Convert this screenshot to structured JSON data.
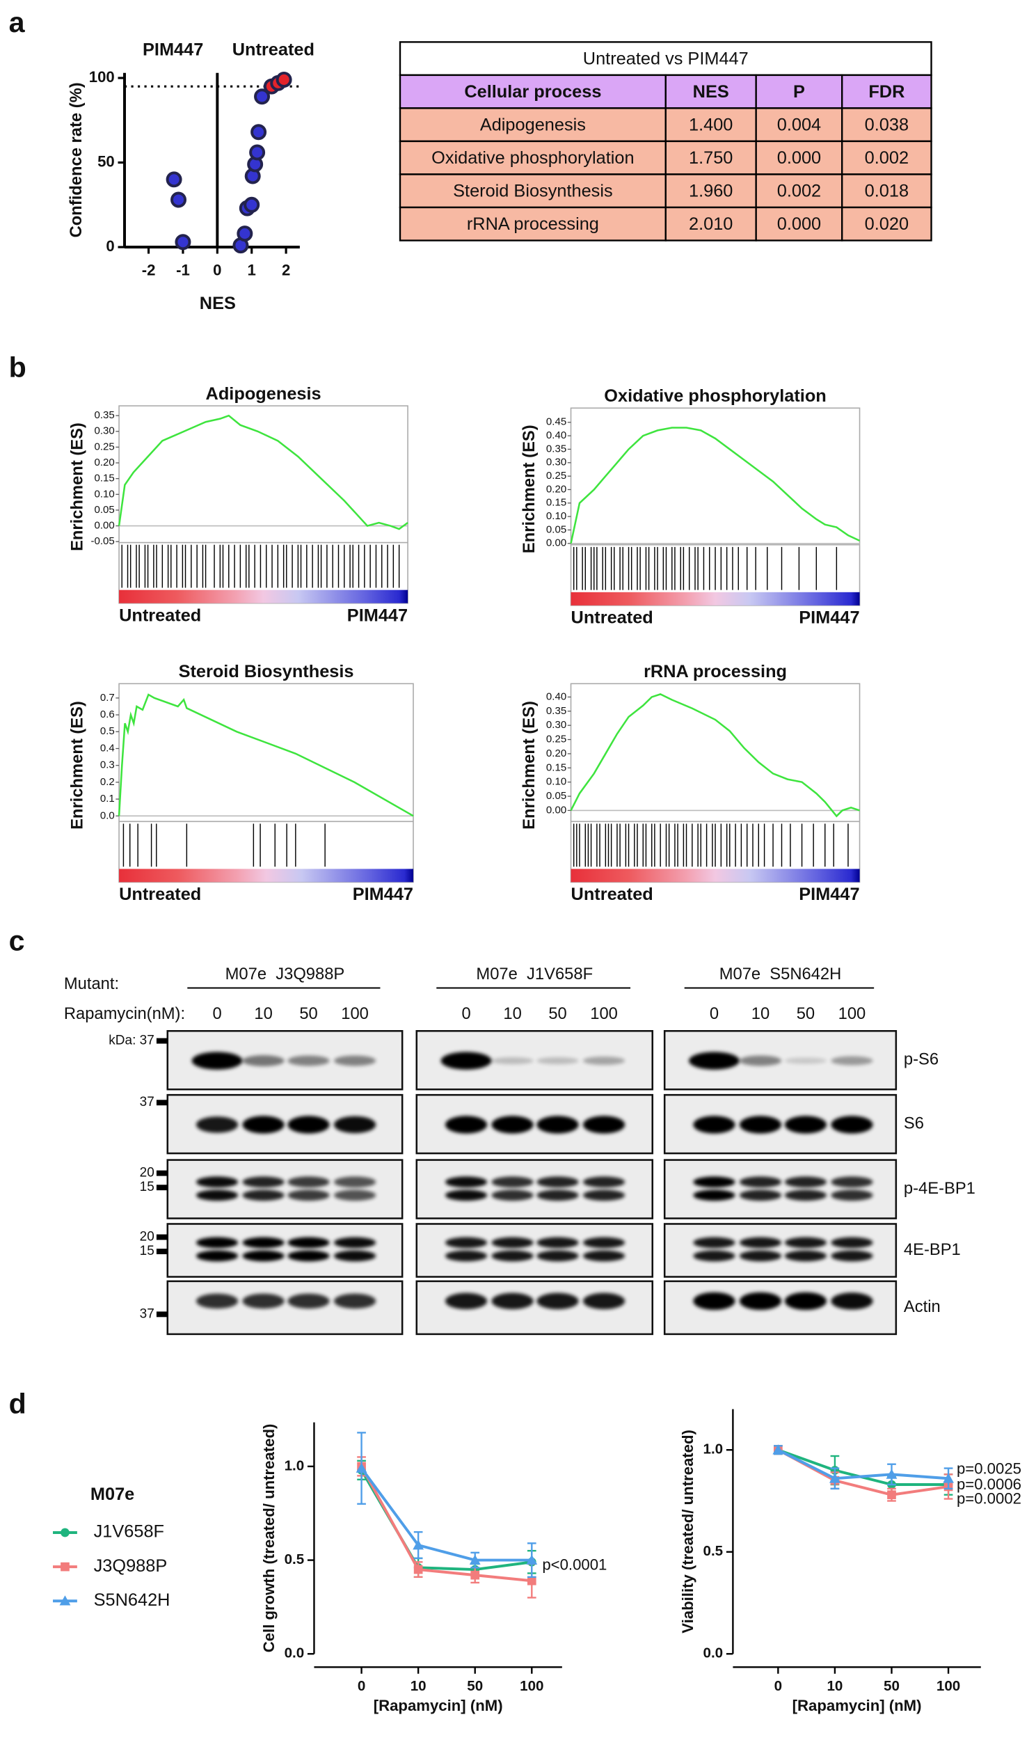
{
  "panels": [
    "a",
    "b",
    "c",
    "d"
  ],
  "chart_data": [
    {
      "type": "scatter",
      "xlabel": "NES",
      "ylabel": "Confidence rate (%)",
      "annotations": [
        "PIM447",
        "Untreated"
      ],
      "xlim": [
        -2.7,
        2.4
      ],
      "xticks": [
        -2,
        -1,
        0,
        1,
        2
      ],
      "ylim": [
        0,
        103
      ],
      "yticks": [
        0,
        50,
        100
      ],
      "threshold": 95,
      "series": [
        {
          "color": "#3434d0",
          "x": [
            -1.26,
            -1.13,
            -1.0,
            0.68,
            0.8,
            0.87,
            1.0,
            1.03,
            1.1,
            1.16,
            1.2,
            1.3
          ],
          "values": [
            40,
            28,
            3,
            1,
            8,
            23,
            25,
            42,
            49,
            56,
            68,
            89
          ]
        },
        {
          "color": "#e3232b",
          "x": [
            1.58,
            1.77,
            1.94
          ],
          "values": [
            95,
            97,
            99
          ]
        }
      ]
    },
    {
      "type": "line",
      "title": "Adipogenesis",
      "ylabel": "Enrichment (ES)",
      "color": "#3ee43e",
      "left_label": "Untreated",
      "right_label": "PIM447",
      "xlim": [
        0,
        100
      ],
      "ylim": [
        -0.053,
        0.381
      ],
      "yticks": [
        -0.05,
        {
          "value": 0,
          "label": "0.00"
        },
        0.05,
        {
          "value": 0.1,
          "label": "0.10"
        },
        0.15,
        {
          "value": 0.2,
          "label": "0.20"
        },
        0.25,
        {
          "value": 0.3,
          "label": "0.30"
        },
        0.35
      ],
      "x": [
        0,
        2,
        5,
        10,
        15,
        20,
        25,
        30,
        35,
        38,
        42,
        48,
        55,
        62,
        70,
        78,
        82,
        86,
        90,
        94,
        97,
        100
      ],
      "values": [
        0,
        0.13,
        0.17,
        0.22,
        0.27,
        0.29,
        0.31,
        0.33,
        0.34,
        0.35,
        0.32,
        0.3,
        0.27,
        0.22,
        0.15,
        0.08,
        0.04,
        0,
        0.01,
        0,
        -0.01,
        0.01
      ],
      "hits": [
        1,
        3,
        4,
        6,
        7,
        9,
        10,
        12,
        13,
        15,
        17,
        18,
        20,
        22,
        23,
        25,
        27,
        29,
        30,
        33,
        35,
        36,
        38,
        40,
        42,
        44,
        45,
        47,
        49,
        51,
        53,
        55,
        57,
        58,
        60,
        62,
        63,
        65,
        67,
        69,
        70,
        72,
        74,
        76,
        78,
        80,
        81,
        83,
        85,
        87,
        89,
        91,
        93,
        95,
        97
      ]
    },
    {
      "type": "line",
      "title": "Oxidative phosphorylation",
      "ylabel": "Enrichment (ES)",
      "color": "#3ee43e",
      "left_label": "Untreated",
      "right_label": "PIM447",
      "xlim": [
        0,
        100
      ],
      "ylim": [
        -0.005,
        0.503
      ],
      "yticks": [
        {
          "value": 0,
          "label": "0.00"
        },
        0.05,
        {
          "value": 0.1,
          "label": "0.10"
        },
        0.15,
        {
          "value": 0.2,
          "label": "0.20"
        },
        0.25,
        {
          "value": 0.3,
          "label": "0.30"
        },
        0.35,
        {
          "value": 0.4,
          "label": "0.40"
        },
        0.45
      ],
      "x": [
        0,
        3,
        8,
        12,
        16,
        20,
        25,
        30,
        35,
        40,
        45,
        50,
        55,
        60,
        65,
        70,
        75,
        80,
        85,
        88,
        92,
        96,
        100
      ],
      "values": [
        0,
        0.15,
        0.2,
        0.25,
        0.3,
        0.35,
        0.4,
        0.42,
        0.43,
        0.43,
        0.42,
        0.39,
        0.35,
        0.31,
        0.27,
        0.23,
        0.18,
        0.13,
        0.09,
        0.07,
        0.06,
        0.03,
        0.01
      ],
      "hits": [
        1,
        2,
        4,
        5,
        7,
        8,
        9,
        11,
        12,
        14,
        15,
        17,
        18,
        20,
        21,
        23,
        24,
        26,
        27,
        29,
        30,
        32,
        33,
        35,
        36,
        38,
        39,
        41,
        43,
        44,
        46,
        48,
        50,
        52,
        54,
        56,
        58,
        61,
        64,
        68,
        73,
        79,
        85,
        92
      ]
    },
    {
      "type": "line",
      "title": "Steroid Biosynthesis",
      "ylabel": "Enrichment (ES)",
      "color": "#3ee43e",
      "left_label": "Untreated",
      "right_label": "PIM447",
      "xlim": [
        0,
        100
      ],
      "ylim": [
        -0.033,
        0.785
      ],
      "yticks": [
        {
          "value": 0,
          "label": "0.0"
        },
        0.1,
        0.2,
        0.3,
        0.4,
        0.5,
        0.6,
        0.7
      ],
      "x": [
        0,
        1,
        2,
        3,
        4,
        5,
        6,
        8,
        10,
        12,
        20,
        22,
        23,
        40,
        60,
        80,
        100
      ],
      "values": [
        0,
        0.3,
        0.55,
        0.5,
        0.6,
        0.55,
        0.65,
        0.63,
        0.72,
        0.7,
        0.65,
        0.69,
        0.64,
        0.5,
        0.37,
        0.2,
        0
      ],
      "hits": [
        1.5,
        3.7,
        6.4,
        11,
        12.7,
        23,
        45.7,
        48,
        53,
        57,
        60,
        70
      ]
    },
    {
      "type": "line",
      "title": "rRNA processing",
      "ylabel": "Enrichment (ES)",
      "color": "#3ee43e",
      "left_label": "Untreated",
      "right_label": "PIM447",
      "xlim": [
        0,
        100
      ],
      "ylim": [
        -0.039,
        0.447
      ],
      "yticks": [
        {
          "value": 0,
          "label": "0.00"
        },
        0.05,
        {
          "value": 0.1,
          "label": "0.10"
        },
        0.15,
        {
          "value": 0.2,
          "label": "0.20"
        },
        0.25,
        {
          "value": 0.3,
          "label": "0.30"
        },
        0.35,
        {
          "value": 0.4,
          "label": "0.40"
        }
      ],
      "x": [
        0,
        3,
        8,
        12,
        16,
        20,
        25,
        28,
        31,
        35,
        42,
        50,
        55,
        60,
        65,
        70,
        75,
        80,
        85,
        88,
        92,
        94,
        97,
        100
      ],
      "values": [
        0,
        0.06,
        0.13,
        0.2,
        0.27,
        0.33,
        0.37,
        0.4,
        0.41,
        0.39,
        0.36,
        0.32,
        0.28,
        0.22,
        0.17,
        0.13,
        0.11,
        0.1,
        0.06,
        0.03,
        -0.02,
        0,
        0.01,
        0
      ],
      "hits": [
        1,
        2,
        3,
        5,
        6,
        7,
        9,
        10,
        12,
        13,
        14,
        16,
        17,
        19,
        20,
        22,
        23,
        25,
        26,
        28,
        29,
        31,
        33,
        34,
        36,
        37,
        39,
        40,
        42,
        44,
        45,
        47,
        49,
        50,
        52,
        54,
        55,
        57,
        59,
        61,
        63,
        65,
        67,
        70,
        73,
        76,
        80,
        84,
        88,
        91,
        96
      ]
    },
    {
      "type": "errorline",
      "ylabel": "Cell growth (treated/ untreated)",
      "xlabel": "[Rapamycin] (nM)",
      "legend_title": "M07e",
      "annotation": "p<0.0001",
      "categories": [
        "0",
        "10",
        "50",
        "100"
      ],
      "ylim": [
        0,
        1.235
      ],
      "yticks": [
        {
          "value": 0,
          "label": "0.0"
        },
        0.5,
        {
          "value": 1,
          "label": "1.0"
        }
      ],
      "series": [
        {
          "name": "J1V658F",
          "color": "#1fb47e",
          "values": [
            0.98,
            0.46,
            0.45,
            0.49
          ],
          "errors": [
            0.05,
            0.05,
            0.03,
            0.06
          ]
        },
        {
          "name": "J3Q988P",
          "color": "#f27c7c",
          "values": [
            1.0,
            0.45,
            0.42,
            0.39
          ],
          "errors": [
            0.05,
            0.04,
            0.04,
            0.09
          ]
        },
        {
          "name": "S5N642H",
          "color": "#4f9ee8",
          "values": [
            0.99,
            0.58,
            0.5,
            0.5
          ],
          "errors": [
            0.19,
            0.07,
            0.04,
            0.09
          ]
        }
      ]
    },
    {
      "type": "errorline",
      "ylabel": "Viability (treated/ untreated)",
      "xlabel": "[Rapamycin] (nM)",
      "categories": [
        "0",
        "10",
        "50",
        "100"
      ],
      "ylim": [
        0,
        1.2
      ],
      "yticks": [
        {
          "value": 0,
          "label": "0.0"
        },
        0.5,
        {
          "value": 1,
          "label": "1.0"
        }
      ],
      "series": [
        {
          "color": "#1fb47e",
          "values": [
            1.0,
            0.9,
            0.83,
            0.83
          ],
          "errors": [
            0.02,
            0.07,
            0.04,
            0.05
          ],
          "annotation": "p=0.0006"
        },
        {
          "color": "#f27c7c",
          "values": [
            1.0,
            0.85,
            0.78,
            0.82
          ],
          "errors": [
            0.02,
            0.04,
            0.03,
            0.06
          ],
          "annotation": "p=0.0002"
        },
        {
          "color": "#4f9ee8",
          "values": [
            1.0,
            0.86,
            0.88,
            0.86
          ],
          "errors": [
            0.02,
            0.05,
            0.05,
            0.05
          ],
          "annotation": "p=0.0025"
        }
      ]
    }
  ],
  "table": {
    "title": "Untreated vs PIM447",
    "header": [
      "Cellular process",
      "NES",
      "P",
      "FDR"
    ],
    "rows": [
      [
        "Adipogenesis",
        "1.400",
        "0.004",
        "0.038"
      ],
      [
        "Oxidative phosphorylation",
        "1.750",
        "0.000",
        "0.002"
      ],
      [
        "Steroid Biosynthesis",
        "1.960",
        "0.002",
        "0.018"
      ],
      [
        "rRNA processing",
        "2.010",
        "0.000",
        "0.020"
      ]
    ]
  },
  "blot": {
    "mutant_label": "Mutant:",
    "dose_label": "Rapamycin(nM):",
    "groups": [
      "M07e  J3Q988P",
      "M07e  J1V658F",
      "M07e  S5N642H"
    ],
    "doses": [
      "0",
      "10",
      "50",
      "100"
    ],
    "proteins": [
      "p-S6",
      "S6",
      "p-4E-BP1",
      "4E-BP1",
      "Actin"
    ],
    "markers": [
      [
        "kDa: 37"
      ],
      [
        "37"
      ],
      [
        "20",
        "15"
      ],
      [
        "20",
        "15"
      ],
      [
        "37"
      ]
    ]
  }
}
